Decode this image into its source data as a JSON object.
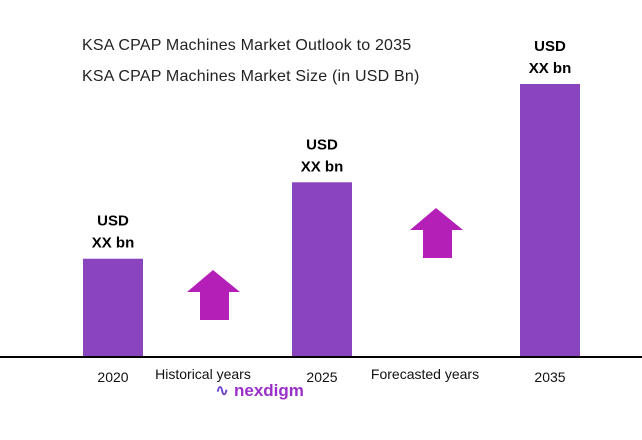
{
  "chart_data": {
    "type": "bar",
    "title": "KSA CPAP Machines Market Outlook to 2035",
    "subtitle": "KSA CPAP Machines Market Size (in USD Bn)",
    "categories": [
      "2020",
      "2025",
      "2035"
    ],
    "values_relative_percent": [
      36,
      64,
      100
    ],
    "data_labels": [
      [
        "USD",
        "XX bn"
      ],
      [
        "USD",
        "XX bn"
      ],
      [
        "USD",
        "XX bn"
      ]
    ],
    "period_labels": [
      "Historical years",
      "Forecasted years"
    ],
    "grid": false,
    "bar_color": "#8a44be",
    "arrow_color": "#b41fb8",
    "axis_color": "#000000"
  },
  "logo": {
    "text": "nexdigm",
    "color": "#9b2fc9"
  }
}
